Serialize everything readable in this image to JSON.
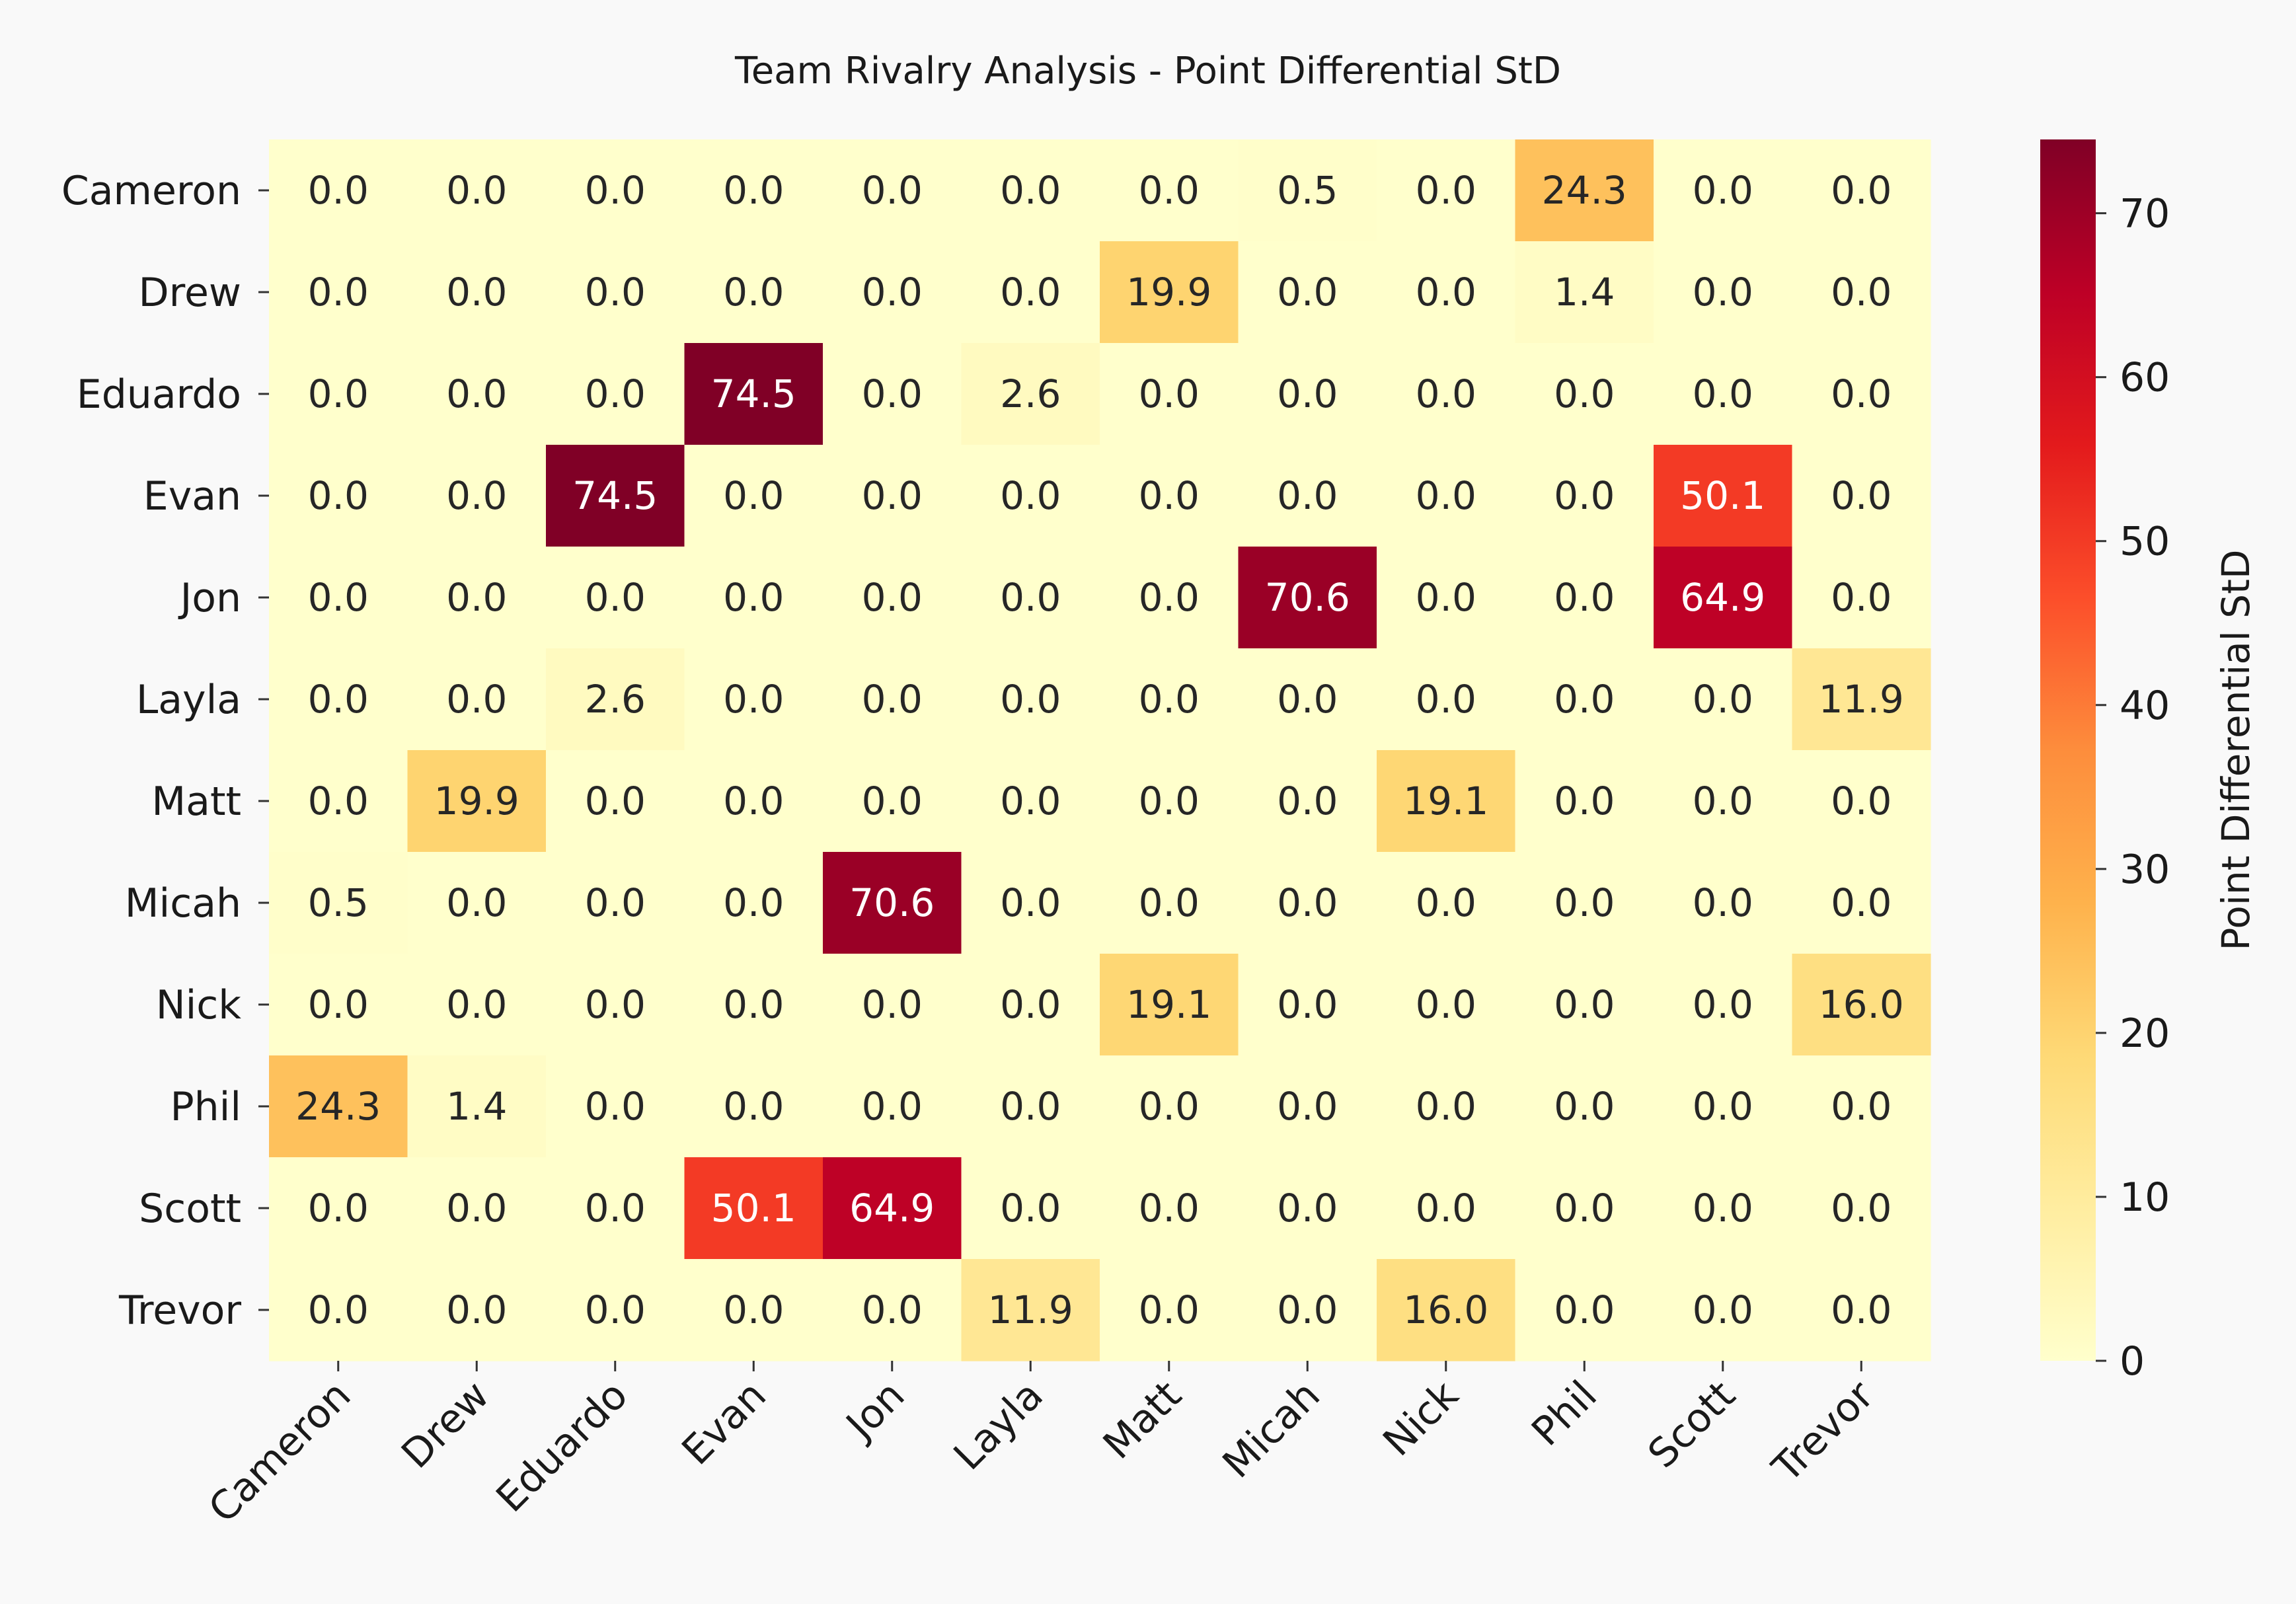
{
  "chart_data": {
    "type": "heatmap",
    "title": "Team Rivalry Analysis - Point Differential StD",
    "xlabel": "",
    "ylabel": "",
    "rows": [
      "Cameron",
      "Drew",
      "Eduardo",
      "Evan",
      "Jon",
      "Layla",
      "Matt",
      "Micah",
      "Nick",
      "Phil",
      "Scott",
      "Trevor"
    ],
    "columns": [
      "Cameron",
      "Drew",
      "Eduardo",
      "Evan",
      "Jon",
      "Layla",
      "Matt",
      "Micah",
      "Nick",
      "Phil",
      "Scott",
      "Trevor"
    ],
    "values": [
      [
        0.0,
        0.0,
        0.0,
        0.0,
        0.0,
        0.0,
        0.0,
        0.5,
        0.0,
        24.3,
        0.0,
        0.0
      ],
      [
        0.0,
        0.0,
        0.0,
        0.0,
        0.0,
        0.0,
        19.9,
        0.0,
        0.0,
        1.4,
        0.0,
        0.0
      ],
      [
        0.0,
        0.0,
        0.0,
        74.5,
        0.0,
        2.6,
        0.0,
        0.0,
        0.0,
        0.0,
        0.0,
        0.0
      ],
      [
        0.0,
        0.0,
        74.5,
        0.0,
        0.0,
        0.0,
        0.0,
        0.0,
        0.0,
        0.0,
        50.1,
        0.0
      ],
      [
        0.0,
        0.0,
        0.0,
        0.0,
        0.0,
        0.0,
        0.0,
        70.6,
        0.0,
        0.0,
        64.9,
        0.0
      ],
      [
        0.0,
        0.0,
        2.6,
        0.0,
        0.0,
        0.0,
        0.0,
        0.0,
        0.0,
        0.0,
        0.0,
        11.9
      ],
      [
        0.0,
        19.9,
        0.0,
        0.0,
        0.0,
        0.0,
        0.0,
        0.0,
        19.1,
        0.0,
        0.0,
        0.0
      ],
      [
        0.5,
        0.0,
        0.0,
        0.0,
        70.6,
        0.0,
        0.0,
        0.0,
        0.0,
        0.0,
        0.0,
        0.0
      ],
      [
        0.0,
        0.0,
        0.0,
        0.0,
        0.0,
        0.0,
        19.1,
        0.0,
        0.0,
        0.0,
        0.0,
        16.0
      ],
      [
        24.3,
        1.4,
        0.0,
        0.0,
        0.0,
        0.0,
        0.0,
        0.0,
        0.0,
        0.0,
        0.0,
        0.0
      ],
      [
        0.0,
        0.0,
        0.0,
        50.1,
        64.9,
        0.0,
        0.0,
        0.0,
        0.0,
        0.0,
        0.0,
        0.0
      ],
      [
        0.0,
        0.0,
        0.0,
        0.0,
        0.0,
        11.9,
        0.0,
        0.0,
        16.0,
        0.0,
        0.0,
        0.0
      ]
    ],
    "value_format": "0.0",
    "colormap": "YlOrRd",
    "colorbar": {
      "label": "Point Differential StD",
      "range": [
        0,
        74.5
      ],
      "ticks": [
        0,
        10,
        20,
        30,
        40,
        50,
        60,
        70
      ],
      "placement": "right"
    },
    "grid": false,
    "legend": "none"
  }
}
